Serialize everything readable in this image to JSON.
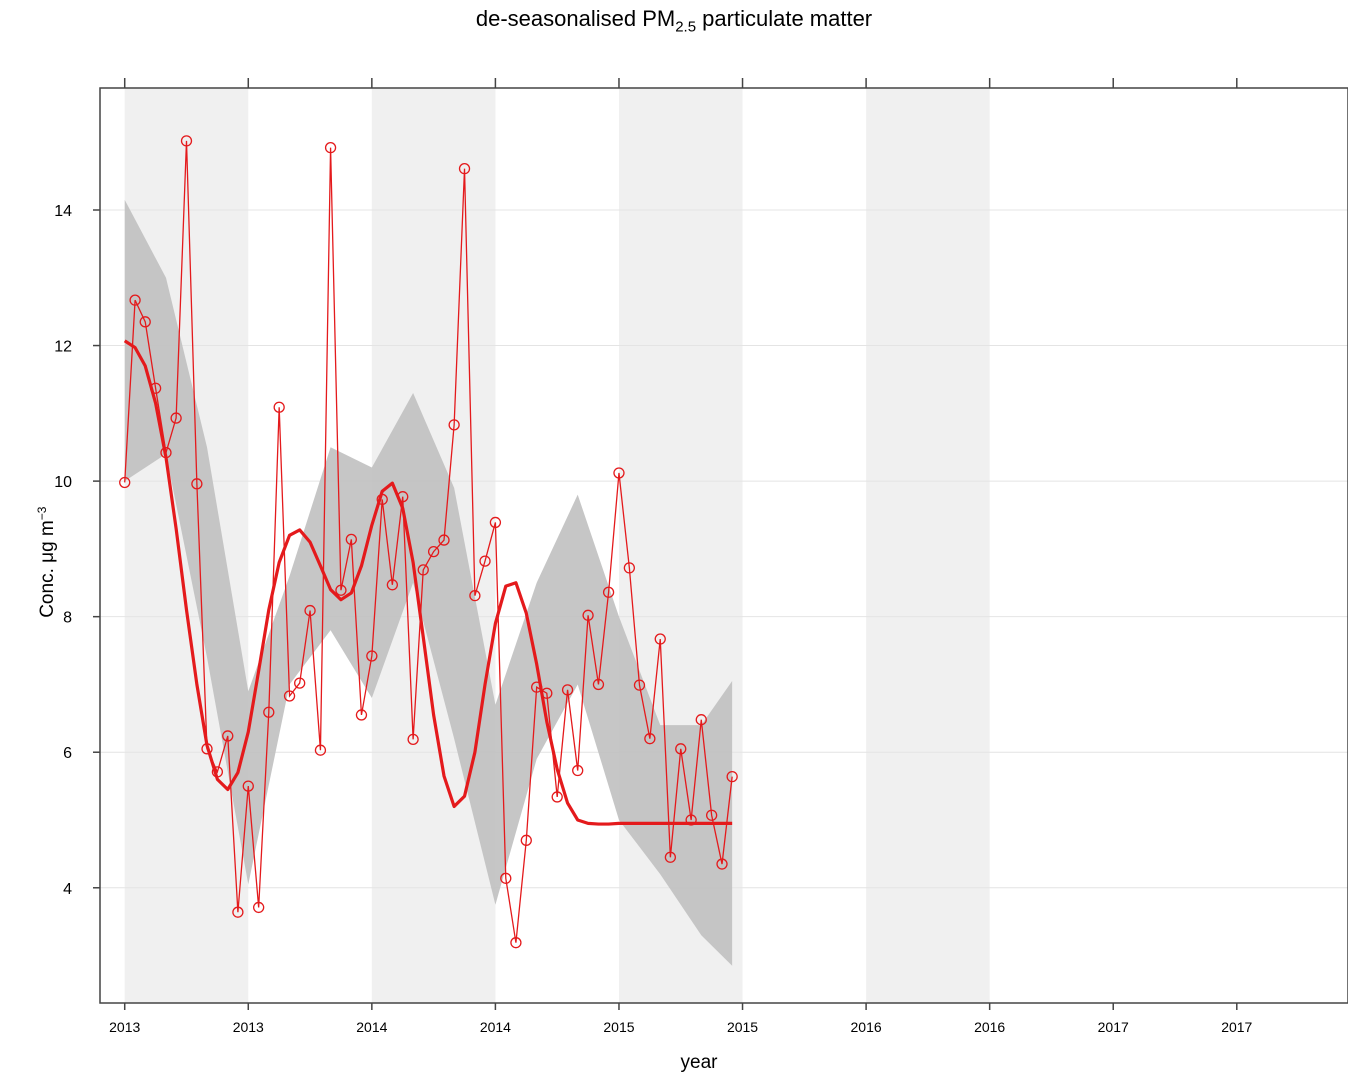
{
  "title": {
    "prefix": "de-seasonalised PM",
    "subscript": "2.5",
    "suffix": " particulate matter"
  },
  "axes": {
    "xlabel": "year",
    "ylabel_text": "Conc. μg m",
    "ylabel_sup": "−3"
  },
  "chart_data": {
    "type": "line",
    "title": "de-seasonalised PM2.5 particulate matter",
    "xlabel": "year",
    "ylabel": "Conc. μg m−3",
    "xlim": [
      2012.9,
      2017.95
    ],
    "ylim": [
      2.3,
      15.8
    ],
    "grid": true,
    "x_tick_positions": [
      2013.0,
      2013.5,
      2014.0,
      2014.5,
      2015.0,
      2015.5,
      2016.0,
      2016.5,
      2017.0,
      2017.5
    ],
    "x_tick_labels": [
      "2013",
      "2013",
      "2014",
      "2014",
      "2015",
      "2015",
      "2016",
      "2016",
      "2017",
      "2017"
    ],
    "y_ticks": [
      4,
      6,
      8,
      10,
      12,
      14
    ],
    "shaded_bands": [
      [
        2013.0,
        2013.5
      ],
      [
        2014.0,
        2014.5
      ],
      [
        2015.0,
        2015.5
      ],
      [
        2016.0,
        2016.5
      ]
    ],
    "colors": {
      "series": "#e41a1c",
      "smooth": "#e41a1c",
      "band": "#c0c0c0",
      "shade": "#f0f0f0"
    },
    "series": [
      {
        "type": "line-points",
        "x": [
          2013.0,
          2013.042,
          2013.083,
          2013.125,
          2013.167,
          2013.208,
          2013.25,
          2013.292,
          2013.333,
          2013.375,
          2013.417,
          2013.458,
          2013.5,
          2013.542,
          2013.583,
          2013.625,
          2013.667,
          2013.708,
          2013.75,
          2013.792,
          2013.833,
          2013.875,
          2013.917,
          2013.958,
          2014.0,
          2014.042,
          2014.083,
          2014.125,
          2014.167,
          2014.208,
          2014.25,
          2014.292,
          2014.333,
          2014.375,
          2014.417,
          2014.458,
          2014.5,
          2014.542,
          2014.583,
          2014.625,
          2014.667,
          2014.708,
          2014.75,
          2014.792,
          2014.833,
          2014.875,
          2014.917,
          2014.958,
          2015.0,
          2015.042,
          2015.083,
          2015.125,
          2015.167,
          2015.208,
          2015.25,
          2015.292,
          2015.333,
          2015.375,
          2015.417,
          2015.458
        ],
        "y": [
          9.98,
          12.67,
          12.35,
          11.37,
          10.42,
          10.93,
          15.02,
          9.96,
          6.05,
          5.71,
          6.24,
          3.64,
          5.5,
          3.71,
          6.59,
          11.09,
          6.83,
          7.02,
          8.09,
          6.03,
          14.92,
          8.39,
          9.14,
          6.55,
          7.42,
          9.73,
          8.47,
          9.77,
          6.19,
          8.69,
          8.96,
          9.13,
          10.83,
          14.61,
          8.31,
          8.82,
          9.39,
          4.14,
          3.19,
          4.7,
          6.96,
          6.87,
          5.34,
          6.92,
          5.73,
          8.02,
          7.0,
          8.36,
          10.12,
          8.72,
          6.99,
          6.2,
          7.67,
          4.45,
          6.05,
          5.0,
          6.48,
          5.07,
          4.35,
          5.64
        ]
      },
      {
        "type": "smooth",
        "x": [
          2013.0,
          2013.042,
          2013.083,
          2013.125,
          2013.167,
          2013.208,
          2013.25,
          2013.292,
          2013.333,
          2013.375,
          2013.417,
          2013.458,
          2013.5,
          2013.542,
          2013.583,
          2013.625,
          2013.667,
          2013.708,
          2013.75,
          2013.792,
          2013.833,
          2013.875,
          2013.917,
          2013.958,
          2014.0,
          2014.042,
          2014.083,
          2014.125,
          2014.167,
          2014.208,
          2014.25,
          2014.292,
          2014.333,
          2014.375,
          2014.417,
          2014.458,
          2014.5,
          2014.542,
          2014.583,
          2014.625,
          2014.667,
          2014.708,
          2014.75,
          2014.792,
          2014.833,
          2014.875,
          2014.917,
          2014.958,
          2015.0,
          2015.042,
          2015.083,
          2015.125,
          2015.167,
          2015.208,
          2015.25,
          2015.292,
          2015.333,
          2015.375,
          2015.417,
          2015.458
        ],
        "y": [
          12.07,
          11.97,
          11.7,
          11.15,
          10.35,
          9.3,
          8.1,
          7.0,
          6.1,
          5.6,
          5.45,
          5.7,
          6.3,
          7.2,
          8.1,
          8.8,
          9.2,
          9.28,
          9.1,
          8.75,
          8.4,
          8.25,
          8.35,
          8.75,
          9.35,
          9.85,
          9.97,
          9.6,
          8.8,
          7.7,
          6.55,
          5.65,
          5.2,
          5.35,
          6.0,
          7.0,
          7.9,
          8.45,
          8.5,
          8.05,
          7.3,
          6.45,
          5.75,
          5.25,
          5.0,
          4.95,
          4.94,
          4.94,
          4.95,
          4.95,
          4.95,
          4.95,
          4.95,
          4.95,
          4.95,
          4.95,
          4.95,
          4.95,
          4.95,
          4.95
        ]
      },
      {
        "type": "band",
        "x": [
          2013.0,
          2013.167,
          2013.333,
          2013.5,
          2013.667,
          2013.833,
          2014.0,
          2014.167,
          2014.333,
          2014.5,
          2014.667,
          2014.833,
          2015.0,
          2015.167,
          2015.333,
          2015.458
        ],
        "upper": [
          14.15,
          13.0,
          10.5,
          6.9,
          8.6,
          10.5,
          10.2,
          11.3,
          9.9,
          6.7,
          8.5,
          9.8,
          8.0,
          6.4,
          6.4,
          7.05
        ],
        "lower": [
          10.0,
          10.4,
          7.4,
          4.05,
          7.0,
          7.8,
          6.8,
          8.5,
          6.2,
          3.75,
          5.9,
          7.0,
          5.0,
          4.2,
          3.3,
          2.85
        ]
      }
    ]
  }
}
